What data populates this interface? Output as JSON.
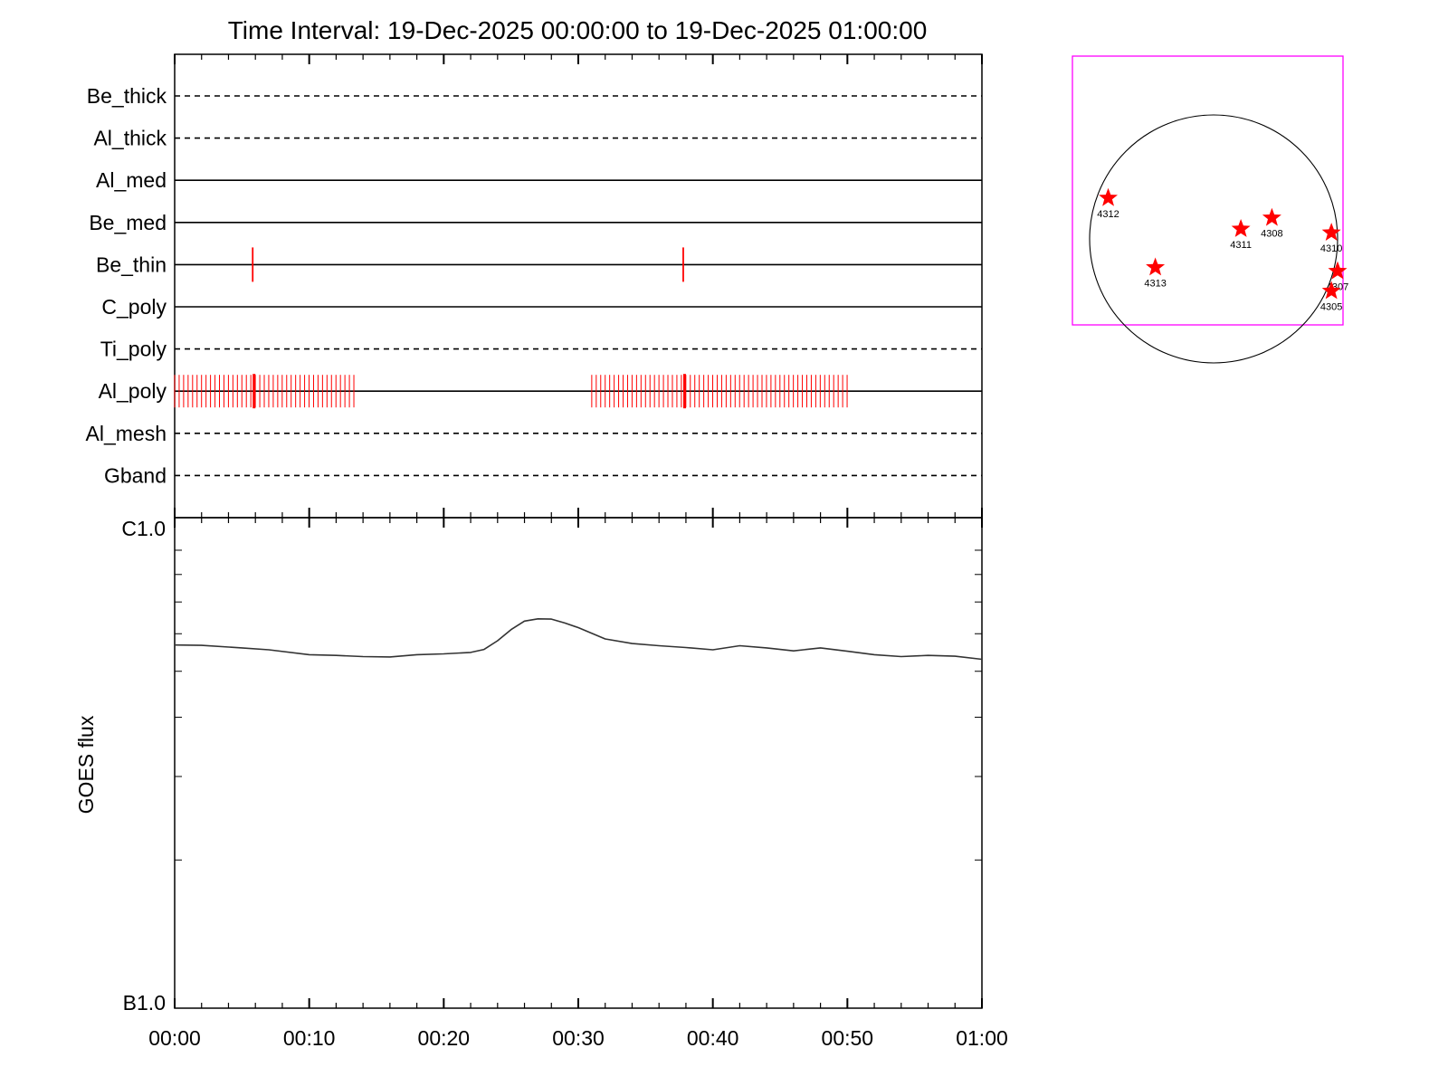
{
  "title": "Time Interval: 19-Dec-2025 00:00:00 to 19-Dec-2025 01:00:00",
  "chart_data": [
    {
      "type": "timeline",
      "x_ticks": [
        "00:00",
        "00:10",
        "00:20",
        "00:30",
        "00:40",
        "00:50",
        "01:00"
      ],
      "x_range_minutes": [
        0,
        60
      ],
      "filters": [
        {
          "name": "Be_thick",
          "style": "dashed",
          "events": []
        },
        {
          "name": "Al_thick",
          "style": "dashed",
          "events": []
        },
        {
          "name": "Al_med",
          "style": "solid",
          "events": []
        },
        {
          "name": "Be_med",
          "style": "solid",
          "events": []
        },
        {
          "name": "Be_thin",
          "style": "solid",
          "events": [
            5.8,
            37.8
          ]
        },
        {
          "name": "C_poly",
          "style": "solid",
          "events": []
        },
        {
          "name": "Ti_poly",
          "style": "dashed",
          "events": []
        },
        {
          "name": "Al_poly",
          "style": "solid",
          "event_ranges": [
            {
              "start": 0.0,
              "end": 13.6,
              "step": 0.333
            },
            {
              "start": 31.0,
              "end": 50.0,
              "step": 0.333
            }
          ],
          "events": [
            5.9,
            37.9
          ]
        },
        {
          "name": "Al_mesh",
          "style": "dashed",
          "events": []
        },
        {
          "name": "Gband",
          "style": "dashed",
          "events": []
        }
      ],
      "event_color": "#ff0000"
    },
    {
      "type": "line",
      "ylabel": "GOES flux",
      "y_ticks": [
        "C1.0",
        "B1.0"
      ],
      "y_scale": "log",
      "ylim": [
        1e-07,
        1e-06
      ],
      "series": [
        {
          "x": [
            0,
            2,
            5,
            7,
            10,
            12,
            14,
            16,
            18,
            20,
            22,
            23,
            24,
            25,
            26,
            27,
            28,
            29,
            30,
            32,
            34,
            36,
            38,
            40,
            42,
            44,
            46,
            48,
            50,
            52,
            54,
            56,
            58,
            60
          ],
          "y": [
            5.68e-07,
            5.67e-07,
            5.6e-07,
            5.55e-07,
            5.42e-07,
            5.4e-07,
            5.37e-07,
            5.36e-07,
            5.42e-07,
            5.44e-07,
            5.48e-07,
            5.56e-07,
            5.8e-07,
            6.12e-07,
            6.38e-07,
            6.45e-07,
            6.44e-07,
            6.32e-07,
            6.18e-07,
            5.85e-07,
            5.72e-07,
            5.66e-07,
            5.61e-07,
            5.55e-07,
            5.66e-07,
            5.6e-07,
            5.52e-07,
            5.6e-07,
            5.51e-07,
            5.42e-07,
            5.37e-07,
            5.4e-07,
            5.38e-07,
            5.3e-07
          ],
          "color": "#333333"
        }
      ]
    },
    {
      "type": "scatter",
      "description_key": "solar-disk",
      "points": [
        {
          "label": "4312",
          "x": -850,
          "y": 330
        },
        {
          "label": "4313",
          "x": -470,
          "y": -230
        },
        {
          "label": "4311",
          "x": 220,
          "y": 80
        },
        {
          "label": "4308",
          "x": 470,
          "y": 170
        },
        {
          "label": "4310",
          "x": 950,
          "y": 50
        },
        {
          "label": "4307",
          "x": 1000,
          "y": -260
        },
        {
          "label": "4305",
          "x": 950,
          "y": -420
        }
      ],
      "disk_radius": 1000,
      "colors": {
        "marker": "#ff0000",
        "frame": "#ff00ff",
        "disk": "#000000"
      }
    }
  ]
}
